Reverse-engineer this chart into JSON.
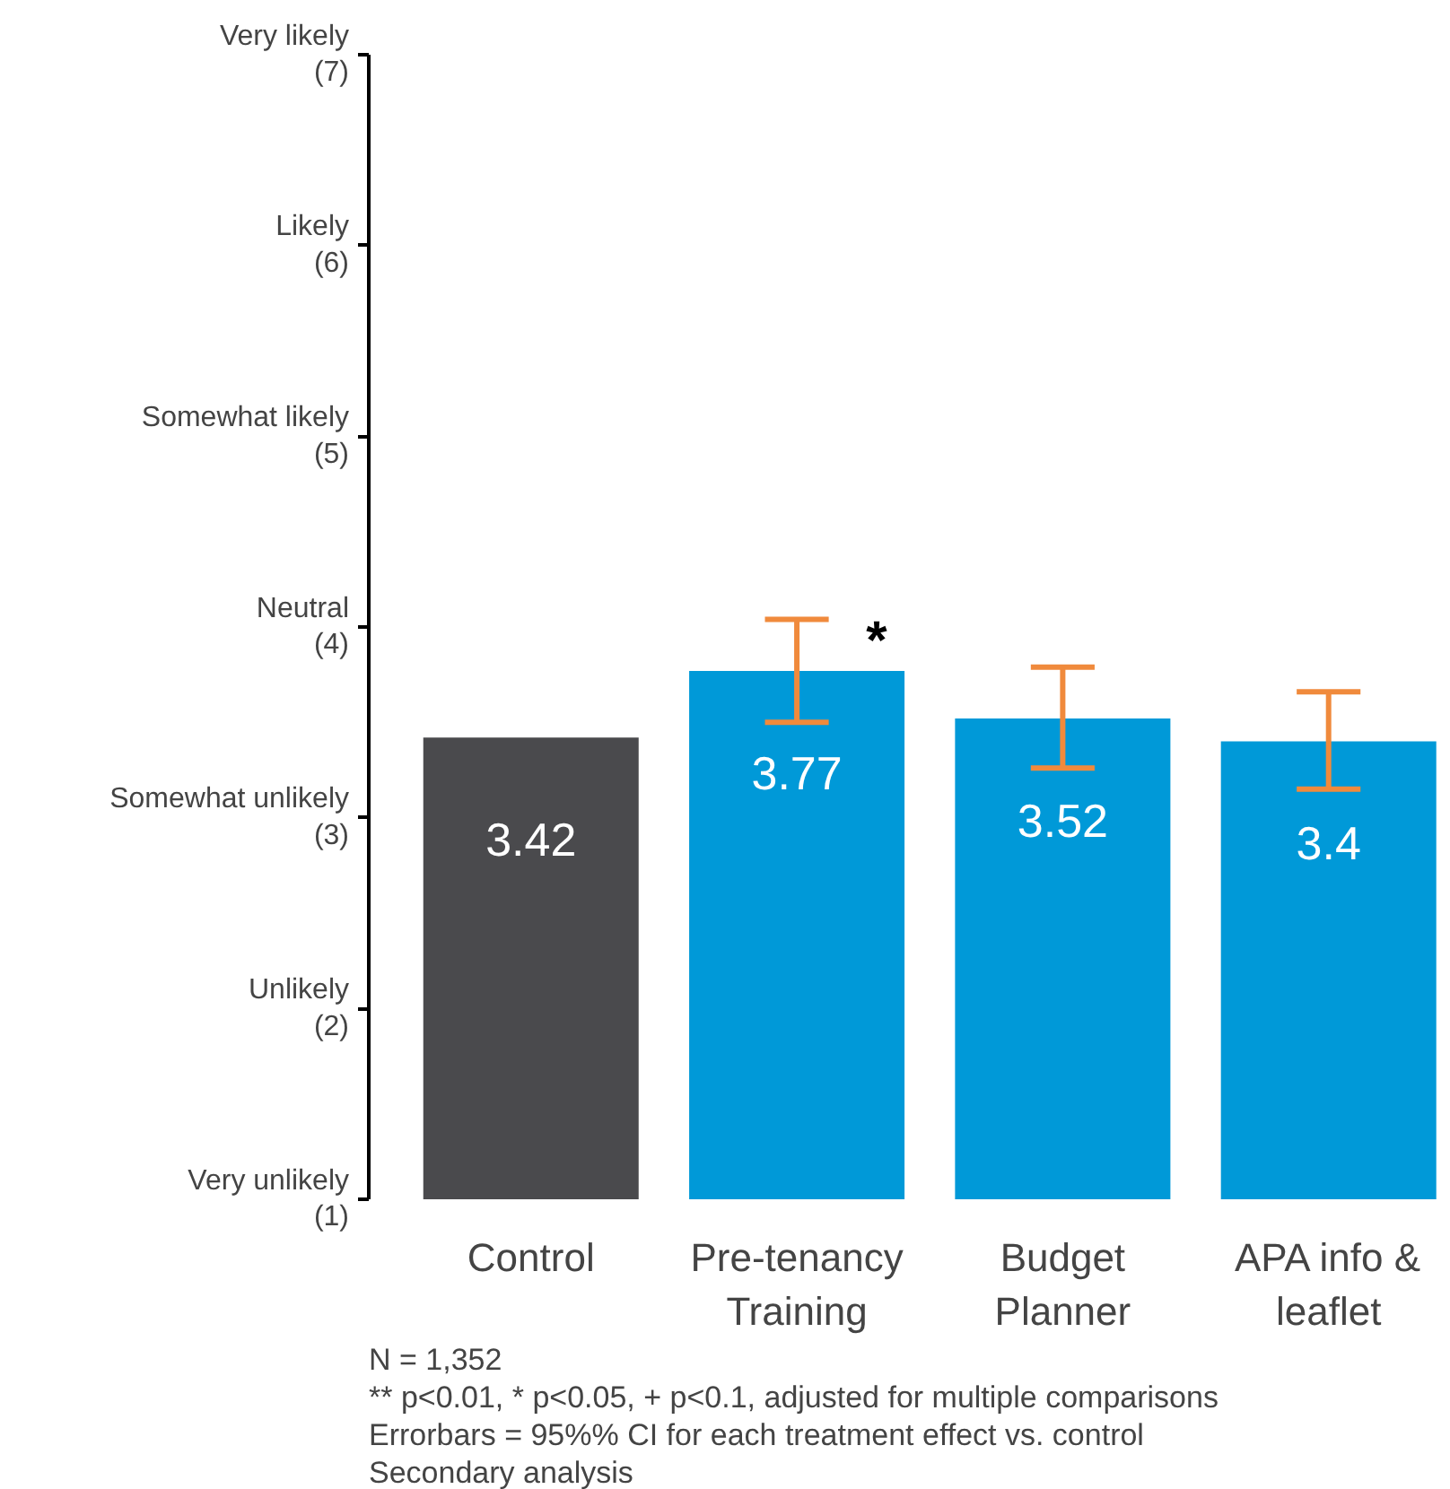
{
  "chart_data": {
    "type": "bar",
    "categories": [
      "Control",
      "Pre-tenancy\nTraining",
      "Budget\nPlanner",
      "APA info &\nleaflet"
    ],
    "values": [
      3.42,
      3.77,
      3.52,
      3.4
    ],
    "colors": [
      "#4a4a4d",
      "#0099d8",
      "#0099d8",
      "#0099d8"
    ],
    "errors": [
      null,
      [
        3.5,
        4.04
      ],
      [
        3.26,
        3.79
      ],
      [
        3.15,
        3.66
      ]
    ],
    "ylim": [
      1,
      7
    ],
    "yticks": [
      {
        "value": 1,
        "label": "Very unlikely\n(1)"
      },
      {
        "value": 2,
        "label": "Unlikely\n(2)"
      },
      {
        "value": 3,
        "label": "Somewhat unlikely\n(3)"
      },
      {
        "value": 4,
        "label": "Neutral\n(4)"
      },
      {
        "value": 5,
        "label": "Somewhat likely\n(5)"
      },
      {
        "value": 6,
        "label": "Likely\n(6)"
      },
      {
        "value": 7,
        "label": "Very likely\n(7)"
      }
    ],
    "data_labels": true,
    "grid": false,
    "annotations": [
      {
        "text": "*",
        "x": "Pre-tenancy\nTraining",
        "y": 3.77
      },
      "N = 1,352",
      "** p<0.01, * p<0.05, + p<0.1, adjusted for multiple comparisons",
      "Errorbars = 95%% CI for each treatment effect vs. control",
      "Secondary analysis"
    ]
  }
}
